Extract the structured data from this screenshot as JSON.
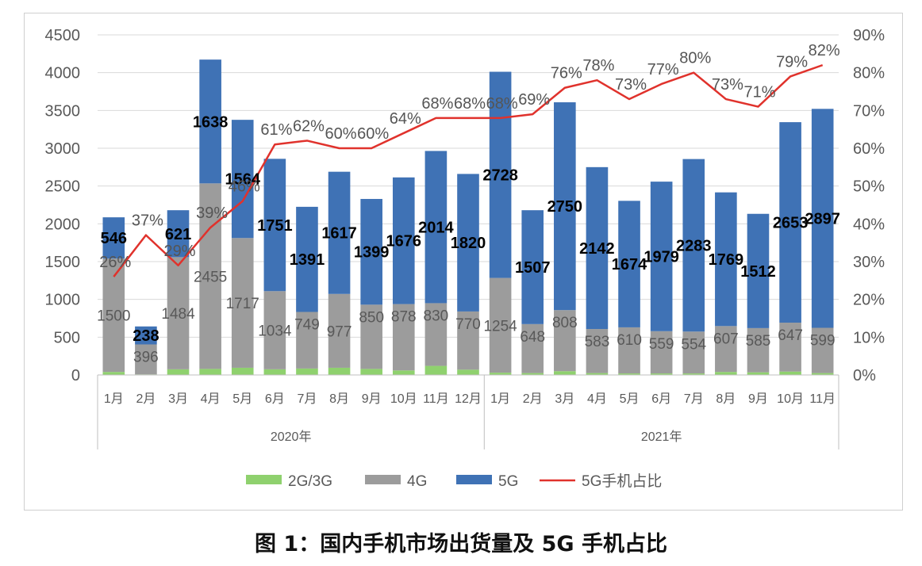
{
  "figure_caption": "图 1：国内手机市场出货量及 5G 手机占比",
  "colors": {
    "g23": "#8fd16e",
    "g4": "#9c9c9c",
    "g5": "#3f72b5",
    "ratio": "#e0322c",
    "grid": "#d9d9d9",
    "axis_text": "#595959"
  },
  "chart_data": {
    "type": "bar",
    "stacked": true,
    "categories": [
      "1月",
      "2月",
      "3月",
      "4月",
      "5月",
      "6月",
      "7月",
      "8月",
      "9月",
      "10月",
      "11月",
      "12月",
      "1月",
      "2月",
      "3月",
      "4月",
      "5月",
      "6月",
      "7月",
      "8月",
      "9月",
      "10月",
      "11月"
    ],
    "groups": [
      {
        "label": "2020年",
        "count": 12
      },
      {
        "label": "2021年",
        "count": 11
      }
    ],
    "series": [
      {
        "name": "2G/3G",
        "key": "g23",
        "values": [
          40,
          8,
          75,
          80,
          95,
          75,
          85,
          95,
          80,
          60,
          120,
          70,
          30,
          25,
          50,
          25,
          20,
          20,
          20,
          40,
          35,
          45,
          25
        ]
      },
      {
        "name": "4G",
        "key": "g4",
        "values": [
          1500,
          396,
          1484,
          2455,
          1717,
          1034,
          749,
          977,
          850,
          878,
          830,
          770,
          1254,
          648,
          808,
          583,
          610,
          559,
          554,
          607,
          585,
          647,
          599
        ]
      },
      {
        "name": "5G",
        "key": "g5",
        "values": [
          546,
          238,
          621,
          1638,
          1564,
          1751,
          1391,
          1617,
          1399,
          1676,
          2014,
          1820,
          2728,
          1507,
          2750,
          2142,
          1674,
          1979,
          2283,
          1769,
          1512,
          2653,
          2897
        ]
      }
    ],
    "line": {
      "name": "5G手机占比",
      "key": "ratio",
      "values": [
        26,
        37,
        29,
        39,
        46,
        61,
        62,
        60,
        60,
        64,
        68,
        68,
        68,
        69,
        76,
        78,
        73,
        77,
        80,
        73,
        71,
        79,
        82
      ]
    },
    "g4_labels": [
      "1500",
      "396",
      "1484",
      "2455",
      "1717",
      "1034",
      "749",
      "977",
      "850",
      "878",
      "830",
      "770",
      "1254",
      "648",
      "808",
      "583",
      "610",
      "559",
      "554",
      "607",
      "585",
      "647",
      "599"
    ],
    "g5_labels": [
      "546",
      "238",
      "621",
      "1638",
      "1564",
      "1751",
      "1391",
      "1617",
      "1399",
      "1676",
      "2014",
      "1820",
      "2728",
      "1507",
      "2750",
      "2142",
      "1674",
      "1979",
      "2283",
      "1769",
      "1512",
      "2653",
      "2897"
    ],
    "ratio_labels": [
      "26%",
      "37%",
      "29%",
      "39%",
      "46%",
      "61%",
      "62%",
      "60%",
      "60%",
      "64%",
      "68%",
      "68%",
      "68%",
      "69%",
      "76%",
      "78%",
      "73%",
      "77%",
      "80%",
      "73%",
      "71%",
      "79%",
      "82%"
    ],
    "ylim": [
      0,
      4500
    ],
    "yticks": [
      "0",
      "500",
      "1000",
      "1500",
      "2000",
      "2500",
      "3000",
      "3500",
      "4000",
      "4500"
    ],
    "y2lim": [
      0,
      90
    ],
    "y2ticks": [
      "0%",
      "10%",
      "20%",
      "30%",
      "40%",
      "50%",
      "60%",
      "70%",
      "80%",
      "90%"
    ],
    "legend": [
      "2G/3G",
      "4G",
      "5G",
      "5G手机占比"
    ],
    "legend_position": "bottom",
    "grid": true
  }
}
